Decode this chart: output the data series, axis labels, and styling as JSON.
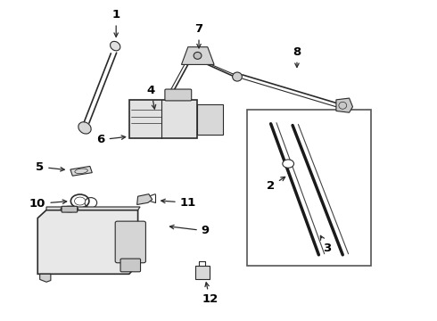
{
  "background_color": "#ffffff",
  "line_color": "#2a2a2a",
  "label_color": "#000000",
  "figsize": [
    4.9,
    3.6
  ],
  "dpi": 100,
  "labels_arrows": {
    "1": {
      "lpos": [
        0.265,
        0.955
      ],
      "apos": [
        0.265,
        0.875
      ]
    },
    "2": {
      "lpos": [
        0.62,
        0.42
      ],
      "apos": [
        0.66,
        0.455
      ]
    },
    "3": {
      "lpos": [
        0.75,
        0.225
      ],
      "apos": [
        0.73,
        0.275
      ]
    },
    "4": {
      "lpos": [
        0.345,
        0.72
      ],
      "apos": [
        0.355,
        0.65
      ]
    },
    "5": {
      "lpos": [
        0.09,
        0.48
      ],
      "apos": [
        0.155,
        0.47
      ]
    },
    "6": {
      "lpos": [
        0.23,
        0.565
      ],
      "apos": [
        0.295,
        0.575
      ]
    },
    "7": {
      "lpos": [
        0.455,
        0.91
      ],
      "apos": [
        0.455,
        0.84
      ]
    },
    "8": {
      "lpos": [
        0.68,
        0.84
      ],
      "apos": [
        0.68,
        0.78
      ]
    },
    "9": {
      "lpos": [
        0.47,
        0.28
      ],
      "apos": [
        0.38,
        0.295
      ]
    },
    "10": {
      "lpos": [
        0.085,
        0.365
      ],
      "apos": [
        0.16,
        0.373
      ]
    },
    "11": {
      "lpos": [
        0.43,
        0.368
      ],
      "apos": [
        0.36,
        0.375
      ]
    },
    "12": {
      "lpos": [
        0.48,
        0.065
      ],
      "apos": [
        0.47,
        0.13
      ]
    }
  }
}
